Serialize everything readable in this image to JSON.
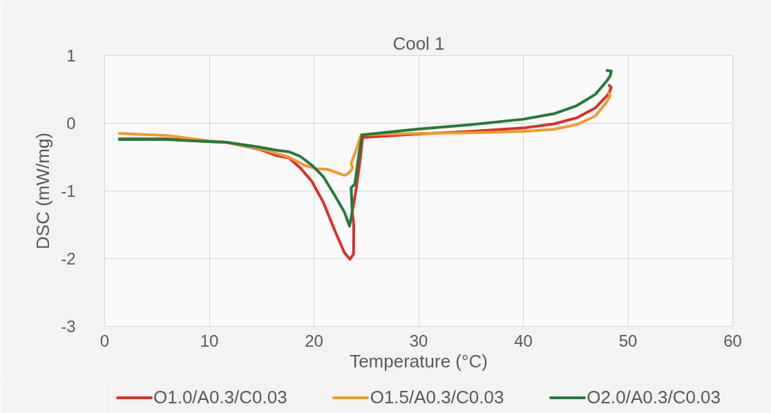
{
  "chart_data": {
    "type": "line",
    "title": "Cool 1",
    "xlabel": "Temperature (°C)",
    "ylabel": "DSC (mW/mg)",
    "xlim": [
      0,
      60
    ],
    "xticks": [
      0,
      10,
      20,
      30,
      40,
      50,
      60
    ],
    "ylim": [
      -3,
      1
    ],
    "yticks": [
      -3,
      -2,
      -1,
      0,
      1
    ],
    "grid": true,
    "legend": "bottom",
    "line_style": "solid",
    "series": [
      {
        "name": "O1.0/A0.3/C0.03",
        "color": "#d9302a",
        "x": [
          48.2,
          48.4,
          48.2,
          48.0,
          46.9,
          45.1,
          42.9,
          40.0,
          35.0,
          29.7,
          24.65,
          24.4,
          24.0,
          23.65,
          23.8,
          23.78,
          23.44,
          22.9,
          22.0,
          20.9,
          19.8,
          18.7,
          17.6,
          16.5,
          14.7,
          11.6,
          10.0,
          5.9,
          1.4
        ],
        "values": [
          0.56,
          0.53,
          0.45,
          0.41,
          0.23,
          0.08,
          -0.01,
          -0.07,
          -0.12,
          -0.16,
          -0.21,
          -0.55,
          -1.0,
          -1.31,
          -1.5,
          -1.93,
          -2.01,
          -1.91,
          -1.59,
          -1.17,
          -0.86,
          -0.66,
          -0.51,
          -0.48,
          -0.38,
          -0.28,
          -0.27,
          -0.23,
          -0.23
        ]
      },
      {
        "name": "O1.5/A0.3/C0.03",
        "color": "#f09a2e",
        "x": [
          48.1,
          48.3,
          47.9,
          46.9,
          45.1,
          42.9,
          40.0,
          35.0,
          29.7,
          24.5,
          24.0,
          23.55,
          23.7,
          23.3,
          22.9,
          21.3,
          20.2,
          19.1,
          17.6,
          16.5,
          14.7,
          11.6,
          10.0,
          5.9,
          1.4
        ],
        "values": [
          0.45,
          0.41,
          0.3,
          0.11,
          -0.02,
          -0.09,
          -0.12,
          -0.14,
          -0.15,
          -0.17,
          -0.41,
          -0.59,
          -0.66,
          -0.74,
          -0.77,
          -0.68,
          -0.67,
          -0.62,
          -0.5,
          -0.45,
          -0.37,
          -0.28,
          -0.26,
          -0.18,
          -0.15
        ]
      },
      {
        "name": "O2.0/A0.3/C0.03",
        "color": "#237a3b",
        "x": [
          48.0,
          48.4,
          48.3,
          48.0,
          46.9,
          45.1,
          42.9,
          40.0,
          35.0,
          29.7,
          24.6,
          24.3,
          23.9,
          23.55,
          23.65,
          23.4,
          22.9,
          22.0,
          20.9,
          19.8,
          18.7,
          17.6,
          16.5,
          14.7,
          11.6,
          10.0,
          5.9,
          1.4
        ],
        "values": [
          0.78,
          0.77,
          0.7,
          0.63,
          0.43,
          0.26,
          0.14,
          0.06,
          -0.02,
          -0.09,
          -0.17,
          -0.45,
          -0.9,
          -0.95,
          -1.31,
          -1.52,
          -1.31,
          -1.07,
          -0.79,
          -0.62,
          -0.49,
          -0.42,
          -0.4,
          -0.35,
          -0.28,
          -0.27,
          -0.24,
          -0.24
        ]
      }
    ]
  }
}
